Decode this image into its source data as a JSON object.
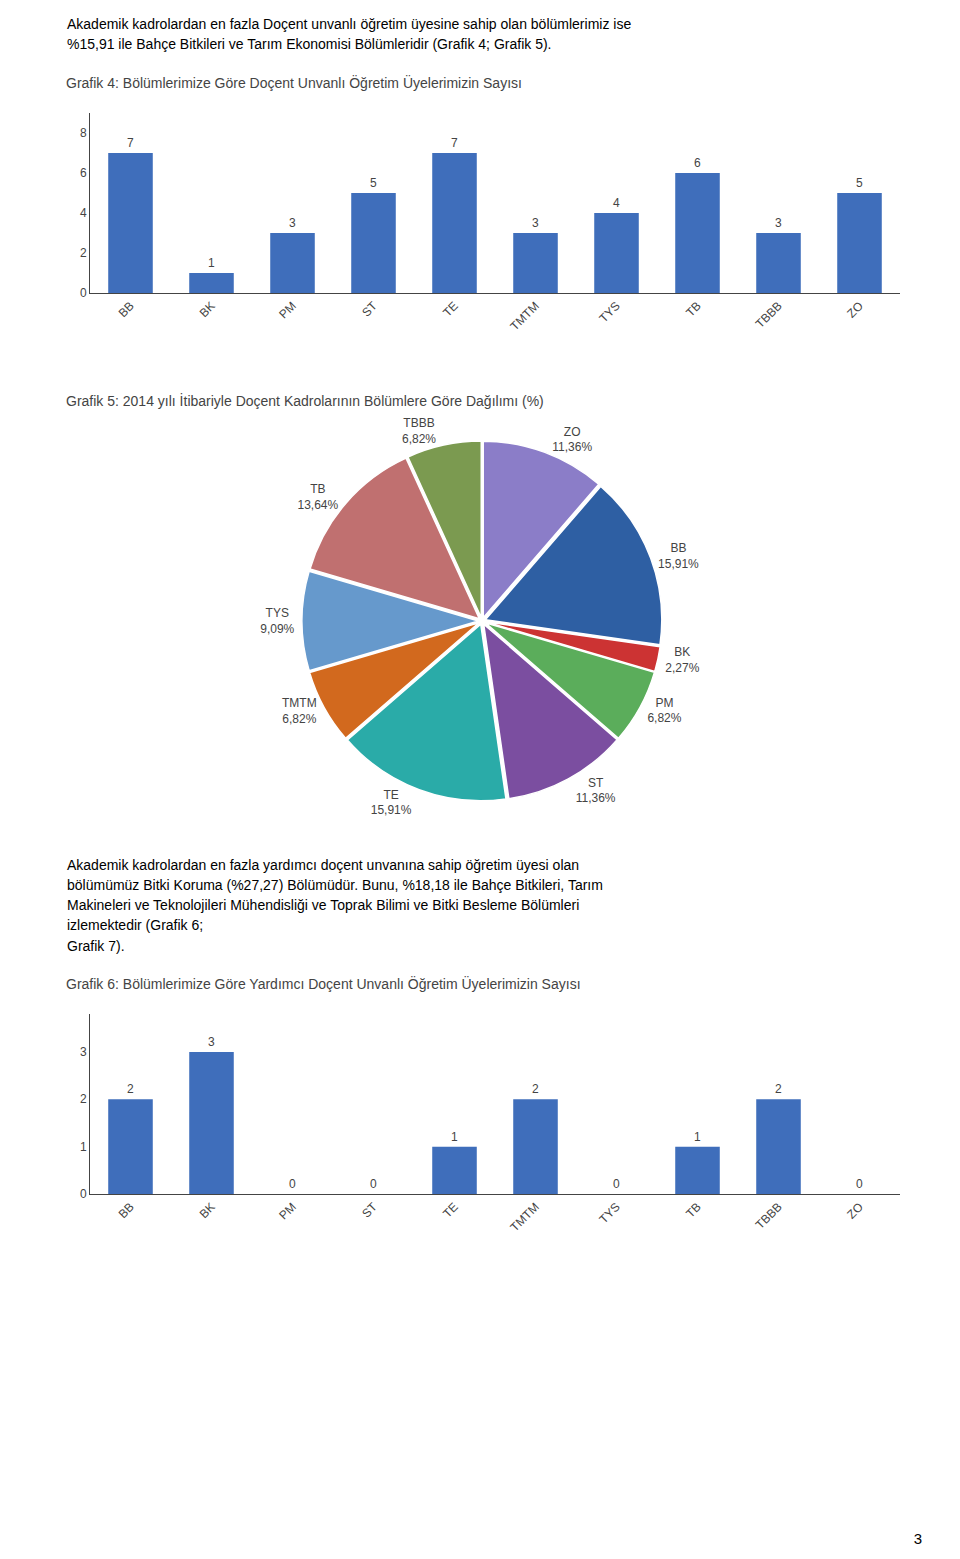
{
  "chart_data": [
    {
      "type": "bar",
      "annotations": [
        "Akademik kadrolardan en fazla Doçent unvanlı öğretim üyesine sahip olan bölümlerimiz ise",
        "%15,91 ile Bahçe Bitkileri ve Tarım Ekonomisi Bölümleridir (Grafik 4; Grafik 5)."
      ],
      "title": "Grafik 4: Bölümlerimize Göre Doçent Unvanlı Öğretim Üyelerimizin Sayısı",
      "categories": [
        "BB",
        "BK",
        "PM",
        "ST",
        "TE",
        "TMTM",
        "TYS",
        "TB",
        "TBBB",
        "ZO"
      ],
      "values": [
        7,
        1,
        3,
        5,
        7,
        3,
        4,
        6,
        3,
        5
      ],
      "color": "#3F6EBB",
      "ylim": [
        0,
        9.0
      ],
      "yticks": [
        0,
        2,
        4,
        6,
        8
      ],
      "grid": false,
      "data_labels": true
    },
    {
      "type": "pie",
      "title": "Grafik 5: 2014 yılı İtibariyle Doçent Kadrolarının Bölümlere Göre Dağılımı (%)",
      "categories": [
        "ZO",
        "BB",
        "BK",
        "PM",
        "ST",
        "TE",
        "TMTM",
        "TYS",
        "TB",
        "TBBB"
      ],
      "values": [
        11.36,
        15.91,
        2.27,
        6.82,
        11.36,
        15.91,
        6.82,
        9.09,
        13.64,
        6.82
      ],
      "value_labels": [
        "11,36%",
        "15,91%",
        "2,27%",
        "6,82%",
        "11,36%",
        "15,91%",
        "6,82%",
        "9,09%",
        "13,64%",
        "6,82%"
      ],
      "colors": [
        "#8B7DC8",
        "#2E5FA3",
        "#CC3333",
        "#5BAD5B",
        "#7B4EA0",
        "#2AABA8",
        "#D2691E",
        "#6699CC",
        "#C07070",
        "#7B9A50"
      ],
      "data_labels": true
    },
    {
      "type": "bar",
      "annotations": [
        "Akademik kadrolardan en fazla yardımcı doçent unvanına sahip öğretim üyesi olan",
        "bölümümüz Bitki Koruma (%27,27) Bölümüdür. Bunu, %18,18 ile Bahçe Bitkileri, Tarım",
        "Makineleri ve Teknolojileri Mühendisliği ve Toprak Bilimi ve Bitki Besleme Bölümleri",
        "izlemektedir (Grafik 6;",
        "Grafik 7)."
      ],
      "title": "Grafik 6: Bölümlerimize Göre Yardımcı Doçent Unvanlı Öğretim Üyelerimizin Sayısı",
      "categories": [
        "BB",
        "BK",
        "PM",
        "ST",
        "TE",
        "TMTM",
        "TYS",
        "TB",
        "TBBB",
        "ZO"
      ],
      "values": [
        2,
        3,
        0,
        0,
        1,
        2,
        0,
        1,
        2,
        0
      ],
      "color": "#3F6EBB",
      "ylim": [
        0,
        3.8
      ],
      "yticks": [
        0,
        1,
        2,
        3
      ],
      "grid": false,
      "data_labels": true
    }
  ],
  "annotations": [
    "3"
  ]
}
